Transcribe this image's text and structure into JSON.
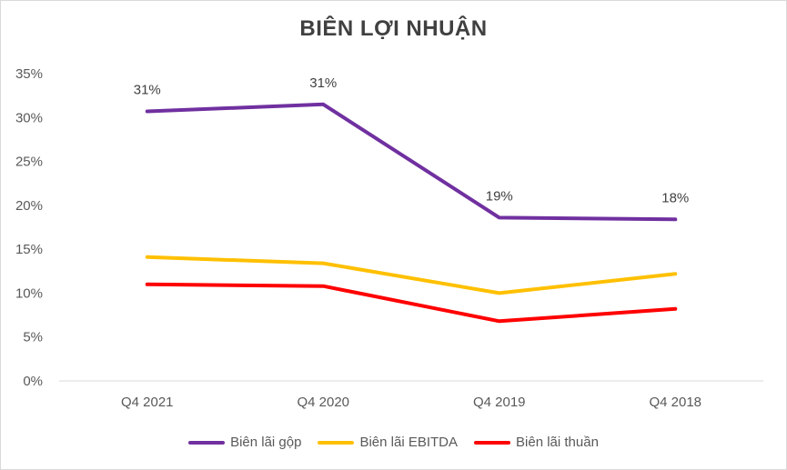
{
  "chart_data": {
    "type": "line",
    "title": "BIÊN LỢI NHUẬN",
    "categories": [
      "Q4 2021",
      "Q4 2020",
      "Q4 2019",
      "Q4 2018"
    ],
    "ylim": [
      0,
      0.35
    ],
    "yticks": [
      "0%",
      "5%",
      "10%",
      "15%",
      "20%",
      "25%",
      "30%",
      "35%"
    ],
    "grid": false,
    "legend_position": "bottom",
    "series": [
      {
        "name": "Biên lãi gộp",
        "color": "#7030a0",
        "values": [
          0.307,
          0.315,
          0.186,
          0.184
        ],
        "data_labels": [
          "31%",
          "31%",
          "19%",
          "18%"
        ]
      },
      {
        "name": "Biên lãi EBITDA",
        "color": "#ffc000",
        "values": [
          0.141,
          0.134,
          0.1,
          0.122
        ],
        "data_labels": []
      },
      {
        "name": "Biên lãi thuần",
        "color": "#ff0000",
        "values": [
          0.11,
          0.108,
          0.068,
          0.082
        ],
        "data_labels": []
      }
    ]
  }
}
